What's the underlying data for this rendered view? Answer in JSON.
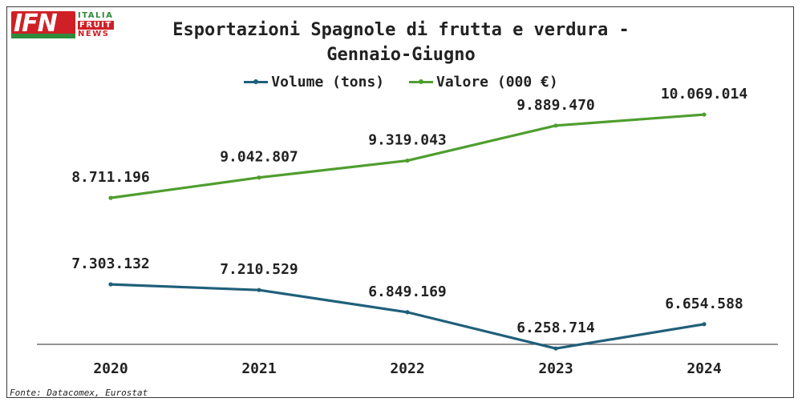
{
  "logo": {
    "letters": "IFN",
    "line1": "ITALIA",
    "line2": "FRUIT",
    "line3": "NEWS"
  },
  "title_line1": "Esportazioni Spagnole di frutta e verdura -",
  "title_line2": "Gennaio-Giugno",
  "source": "Fonte: Datacomex, Eurostat",
  "colors": {
    "volume": "#1f5f7a",
    "valore": "#4e9e2e",
    "axis": "#555555"
  },
  "chart_data": {
    "type": "line",
    "title": "Esportazioni Spagnole di frutta e verdura - Gennaio-Giugno",
    "categories": [
      "2020",
      "2021",
      "2022",
      "2023",
      "2024"
    ],
    "legend_position": "top",
    "grid": false,
    "series": [
      {
        "name": "Volume (tons)",
        "values": [
          7303132,
          7210529,
          6849169,
          6258714,
          6654588
        ],
        "labels": [
          "7.303.132",
          "7.210.529",
          "6.849.169",
          "6.258.714",
          "6.654.588"
        ]
      },
      {
        "name": "Valore (000 €)",
        "values": [
          8711196,
          9042807,
          9319043,
          9889470,
          10069014
        ],
        "labels": [
          "8.711.196",
          "9.042.807",
          "9.319.043",
          "9.889.470",
          "10.069.014"
        ]
      }
    ],
    "ylim": [
      6000000,
      10500000
    ]
  }
}
